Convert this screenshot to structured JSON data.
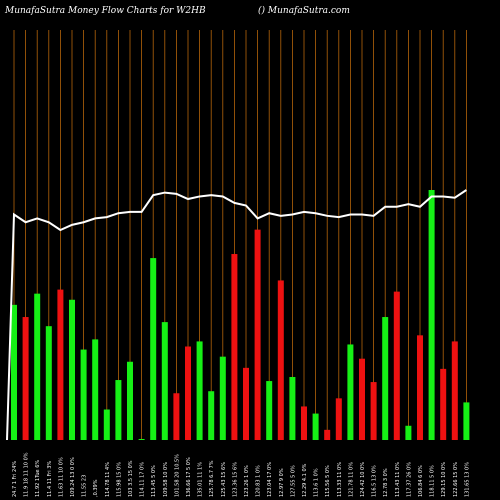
{
  "header": {
    "title": "MunafaSutra  Money Flow  Charts for W2HB",
    "site": "() MunafaSutra.com"
  },
  "colors": {
    "background": "#000000",
    "grid": "#b4650a",
    "up": "#16f016",
    "down": "#ee1111",
    "price_line": "#ffffff"
  },
  "chart_data": {
    "type": "bar",
    "categories": [
      "24.7 1 Fri 24%",
      "11.9 18 11 10 0%",
      "11.92 1Tue 6%",
      "11.4 11 Fri 3%",
      "11.63 11 10 0%",
      "109.24 13 0 0%",
      "11.55 23",
      ",0.39%",
      "114.78 11 4%",
      "115.98 15 0%",
      "103 3.5 15 0%",
      "114.11 17 0%",
      "113.45 5 0%",
      "109.58 10 0%",
      "101.58 20 10.5%",
      "136.66 17 5 0%",
      "135.01 11 1%",
      "125.78 6.7 7%",
      "125.43 15 6%",
      "123.36 15 6%",
      "123.26 1 0%",
      "120.83 1 0%",
      "123.04 17 0%",
      "12.97 9 0%",
      "127.55 5 0%",
      "12.29 4.1 0%",
      "113.6 1 0%",
      "115.56 5 0%",
      "113.33 11 0%",
      "121.78 11 0%",
      "124.42 10 0%",
      "116.5 13 0%",
      "12.78 3 0%",
      "113.43 11 0%",
      "117.37 26 0%",
      "106.84 6 0%",
      "118.11 5 0%",
      "129.15 10 0%",
      "122.66 15 0%",
      "131.65 13 0%"
    ],
    "series": [
      {
        "type": "bar",
        "values": [
          133,
          121,
          144,
          112,
          148,
          138,
          89,
          99,
          30,
          59,
          77,
          1,
          179,
          116,
          46,
          92,
          97,
          48,
          82,
          183,
          71,
          207,
          58,
          157,
          62,
          33,
          26,
          10,
          41,
          94,
          80,
          57,
          121,
          146,
          14,
          103,
          246,
          70,
          97,
          37
        ],
        "colors": [
          "up",
          "down",
          "up",
          "up",
          "down",
          "up",
          "up",
          "up",
          "up",
          "up",
          "up",
          "up",
          "up",
          "up",
          "down",
          "down",
          "up",
          "up",
          "up",
          "down",
          "down",
          "down",
          "up",
          "down",
          "up",
          "down",
          "up",
          "down",
          "down",
          "up",
          "down",
          "down",
          "up",
          "down",
          "up",
          "down",
          "up",
          "down",
          "down",
          "up"
        ]
      },
      {
        "type": "line",
        "values": [
          113,
          119,
          116,
          119,
          125,
          121,
          119,
          116,
          115,
          112,
          111,
          111,
          98,
          96,
          97,
          101,
          99,
          98,
          99,
          104,
          106,
          116,
          112,
          114,
          113,
          111,
          112,
          114,
          115,
          113,
          113,
          114,
          107,
          107,
          105,
          107,
          99,
          99,
          100,
          94
        ]
      }
    ]
  }
}
